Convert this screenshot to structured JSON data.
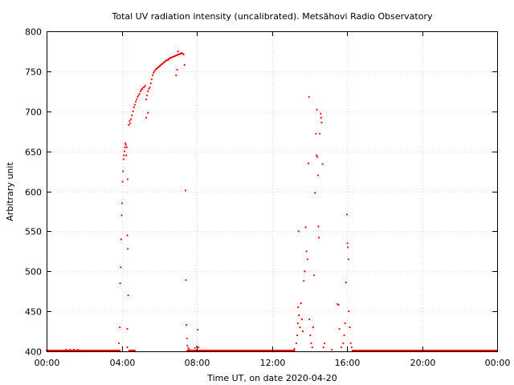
{
  "chart_data": {
    "type": "scatter",
    "title": "Total UV radiation intensity (uncalibrated). Metsähovi Radio Observatory",
    "xlabel": "Time UT, on date 2020-04-20",
    "ylabel": "Arbitrary unit",
    "x_unit": "hours UT",
    "xlim": [
      0,
      24
    ],
    "ylim": [
      400,
      800
    ],
    "x_ticks": [
      0,
      4,
      8,
      12,
      16,
      20,
      24
    ],
    "x_tick_labels": [
      "00:00",
      "04:00",
      "08:00",
      "12:00",
      "16:00",
      "20:00",
      "00:00"
    ],
    "y_ticks": [
      400,
      450,
      500,
      550,
      600,
      650,
      700,
      750,
      800
    ],
    "y_tick_labels": [
      "400",
      "450",
      "500",
      "550",
      "600",
      "650",
      "700",
      "750",
      "800"
    ],
    "grid": true,
    "marker_color": "#ff0000",
    "baseline": {
      "value": 401,
      "x_ranges": [
        [
          0,
          3.9
        ],
        [
          4.4,
          4.7
        ],
        [
          7.5,
          13.2
        ],
        [
          16.3,
          24.0
        ]
      ],
      "step": 0.05
    },
    "series": [
      {
        "points": [
          [
            1.05,
            402
          ],
          [
            1.25,
            402
          ],
          [
            1.45,
            402
          ],
          [
            1.65,
            402
          ],
          [
            3.85,
            410
          ],
          [
            3.9,
            430
          ],
          [
            3.92,
            485
          ],
          [
            3.95,
            505
          ],
          [
            3.97,
            540
          ],
          [
            4.0,
            570
          ],
          [
            4.02,
            585
          ],
          [
            4.05,
            612
          ],
          [
            4.07,
            625
          ],
          [
            4.1,
            640
          ],
          [
            4.12,
            645
          ],
          [
            4.15,
            650
          ],
          [
            4.17,
            655
          ],
          [
            4.2,
            660
          ],
          [
            4.22,
            658
          ],
          [
            4.25,
            645
          ],
          [
            4.27,
            655
          ],
          [
            4.3,
            545
          ],
          [
            4.33,
            528
          ],
          [
            4.35,
            470
          ],
          [
            4.3,
            428
          ],
          [
            4.3,
            405
          ],
          [
            4.32,
            615
          ],
          [
            4.38,
            683
          ],
          [
            4.42,
            688
          ],
          [
            4.45,
            685
          ],
          [
            4.5,
            690
          ],
          [
            4.55,
            695
          ],
          [
            4.6,
            700
          ],
          [
            4.65,
            705
          ],
          [
            4.7,
            708
          ],
          [
            4.75,
            712
          ],
          [
            4.8,
            715
          ],
          [
            4.85,
            718
          ],
          [
            4.9,
            720
          ],
          [
            4.95,
            722
          ],
          [
            5.0,
            725
          ],
          [
            5.05,
            727
          ],
          [
            5.1,
            728
          ],
          [
            5.15,
            730
          ],
          [
            5.2,
            730
          ],
          [
            5.25,
            732
          ],
          [
            5.3,
            715
          ],
          [
            5.35,
            720
          ],
          [
            5.4,
            725
          ],
          [
            5.45,
            728
          ],
          [
            5.5,
            730
          ],
          [
            5.55,
            735
          ],
          [
            5.6,
            740
          ],
          [
            5.65,
            745
          ],
          [
            5.7,
            748
          ],
          [
            5.75,
            750
          ],
          [
            5.8,
            752
          ],
          [
            5.85,
            753
          ],
          [
            5.9,
            754
          ],
          [
            5.95,
            755
          ],
          [
            6.0,
            756
          ],
          [
            6.05,
            757
          ],
          [
            6.1,
            758
          ],
          [
            6.15,
            759
          ],
          [
            6.2,
            760
          ],
          [
            6.25,
            761
          ],
          [
            6.3,
            762
          ],
          [
            6.35,
            763
          ],
          [
            6.4,
            764
          ],
          [
            6.45,
            764
          ],
          [
            6.5,
            765
          ],
          [
            6.55,
            766
          ],
          [
            6.6,
            767
          ],
          [
            6.65,
            767
          ],
          [
            6.7,
            768
          ],
          [
            6.75,
            768
          ],
          [
            6.8,
            769
          ],
          [
            6.85,
            769
          ],
          [
            6.9,
            770
          ],
          [
            6.95,
            770
          ],
          [
            7.0,
            771
          ],
          [
            7.05,
            771
          ],
          [
            7.1,
            772
          ],
          [
            7.15,
            772
          ],
          [
            7.2,
            773
          ],
          [
            7.25,
            772
          ],
          [
            7.3,
            771
          ],
          [
            5.3,
            692
          ],
          [
            5.4,
            698
          ],
          [
            6.9,
            745
          ],
          [
            6.95,
            752
          ],
          [
            7.0,
            775
          ],
          [
            7.35,
            758
          ],
          [
            7.4,
            601
          ],
          [
            7.42,
            489
          ],
          [
            7.45,
            433
          ],
          [
            7.48,
            416
          ],
          [
            7.5,
            407
          ],
          [
            7.55,
            404
          ],
          [
            7.6,
            402
          ],
          [
            7.9,
            404
          ],
          [
            8.0,
            406
          ],
          [
            8.05,
            427
          ],
          [
            8.1,
            405
          ],
          [
            13.2,
            403
          ],
          [
            13.3,
            410
          ],
          [
            13.35,
            420
          ],
          [
            13.38,
            435
          ],
          [
            13.4,
            455
          ],
          [
            13.42,
            550
          ],
          [
            13.45,
            445
          ],
          [
            13.5,
            430
          ],
          [
            13.55,
            460
          ],
          [
            13.6,
            440
          ],
          [
            13.65,
            425
          ],
          [
            13.7,
            488
          ],
          [
            13.75,
            500
          ],
          [
            13.8,
            555
          ],
          [
            13.85,
            525
          ],
          [
            13.9,
            515
          ],
          [
            13.95,
            635
          ],
          [
            13.98,
            718
          ],
          [
            14.0,
            440
          ],
          [
            14.05,
            420
          ],
          [
            14.1,
            410
          ],
          [
            14.15,
            405
          ],
          [
            14.2,
            430
          ],
          [
            14.25,
            495
          ],
          [
            14.3,
            598
          ],
          [
            14.35,
            672
          ],
          [
            14.38,
            645
          ],
          [
            14.4,
            702
          ],
          [
            14.42,
            643
          ],
          [
            14.45,
            620
          ],
          [
            14.48,
            556
          ],
          [
            14.5,
            542
          ],
          [
            14.55,
            672
          ],
          [
            14.6,
            697
          ],
          [
            14.63,
            692
          ],
          [
            14.65,
            686
          ],
          [
            14.7,
            634
          ],
          [
            14.75,
            405
          ],
          [
            14.8,
            410
          ],
          [
            15.2,
            402
          ],
          [
            15.5,
            459
          ],
          [
            15.55,
            458
          ],
          [
            15.6,
            428
          ],
          [
            15.7,
            405
          ],
          [
            15.8,
            410
          ],
          [
            15.85,
            420
          ],
          [
            15.9,
            435
          ],
          [
            15.95,
            486
          ],
          [
            16.0,
            571
          ],
          [
            16.02,
            535
          ],
          [
            16.05,
            530
          ],
          [
            16.08,
            515
          ],
          [
            16.1,
            450
          ],
          [
            16.15,
            430
          ],
          [
            16.2,
            410
          ],
          [
            16.25,
            405
          ]
        ]
      }
    ]
  }
}
